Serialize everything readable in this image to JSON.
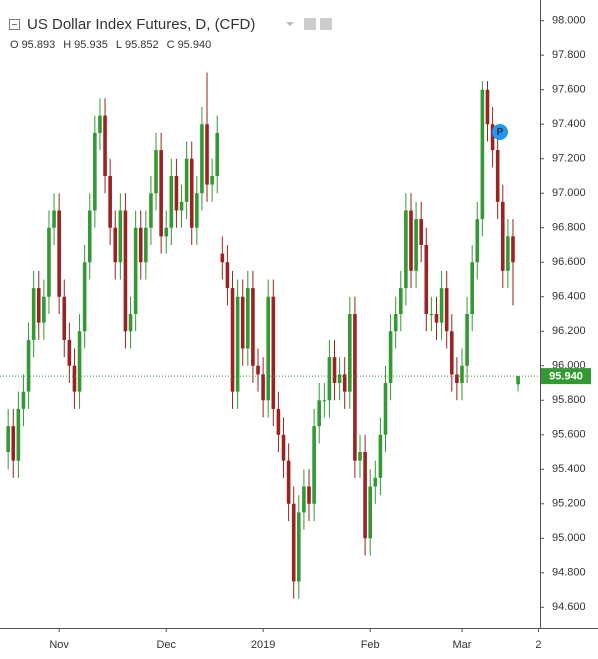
{
  "chart_data": {
    "type": "candlestick",
    "title": "US Dollar Index Futures, D, (CFD)",
    "ohlc_header": [
      {
        "key": "O",
        "value": 95.893
      },
      {
        "key": "H",
        "value": 95.935
      },
      {
        "key": "L",
        "value": 95.852
      },
      {
        "key": "C",
        "value": {
          "value": 95.94,
          "label": "95.940"
        }
      }
    ],
    "up_color": "#339933",
    "down_color": "#992222",
    "open": [
      95.5,
      95.65,
      95.45,
      95.75,
      95.85,
      96.15,
      96.45,
      96.25,
      96.4,
      96.8,
      96.9,
      96.4,
      96.15,
      96.0,
      95.85,
      96.2,
      96.6,
      96.9,
      97.35,
      97.45,
      97.1,
      96.8,
      96.6,
      96.9,
      96.2,
      96.3,
      96.8,
      96.6,
      96.8,
      97.0,
      97.25,
      96.75,
      96.8,
      97.1,
      96.9,
      96.95,
      97.2,
      96.8,
      97.0,
      97.4,
      97.05,
      97.1,
      96.65,
      96.6,
      96.45,
      95.85,
      96.4,
      96.1,
      96.45,
      96.0,
      95.95,
      95.8,
      96.4,
      95.75,
      95.6,
      95.45,
      95.2,
      94.75,
      95.15,
      95.3,
      95.2,
      95.65,
      95.8,
      95.8,
      96.05,
      95.9,
      95.95,
      95.85,
      96.3,
      95.45,
      95.5,
      95.0,
      95.3,
      95.35,
      95.6,
      95.9,
      96.2,
      96.3,
      96.45,
      96.9,
      96.55,
      96.85,
      96.7,
      96.3,
      96.3,
      96.25,
      96.45,
      96.2,
      95.95,
      95.9,
      96.0,
      96.3,
      96.6,
      96.85,
      97.6,
      97.4,
      97.25,
      96.95,
      96.55,
      96.75,
      95.893
    ],
    "high": [
      95.75,
      95.75,
      95.85,
      95.95,
      96.25,
      96.55,
      96.55,
      96.5,
      96.9,
      97.0,
      97.0,
      96.5,
      96.25,
      96.1,
      96.3,
      96.7,
      97.0,
      97.45,
      97.55,
      97.55,
      97.2,
      96.9,
      97.0,
      97.0,
      96.4,
      96.9,
      96.9,
      96.9,
      97.1,
      97.35,
      97.35,
      96.9,
      97.2,
      97.2,
      97.05,
      97.3,
      97.3,
      97.1,
      97.5,
      97.7,
      97.2,
      97.45,
      96.75,
      96.7,
      96.55,
      96.5,
      96.5,
      96.55,
      96.55,
      96.1,
      96.05,
      96.5,
      96.5,
      95.85,
      95.7,
      95.55,
      95.3,
      95.25,
      95.4,
      95.4,
      95.75,
      95.9,
      95.9,
      96.15,
      96.15,
      96.05,
      96.05,
      96.4,
      96.4,
      95.6,
      95.6,
      95.4,
      95.45,
      95.7,
      96.0,
      96.3,
      96.4,
      96.55,
      97.0,
      97.0,
      96.95,
      96.95,
      96.8,
      96.4,
      96.4,
      96.55,
      96.55,
      96.3,
      96.05,
      96.1,
      96.4,
      96.7,
      96.95,
      97.65,
      97.65,
      97.5,
      97.35,
      97.05,
      96.85,
      96.85,
      95.935
    ],
    "low": [
      95.4,
      95.35,
      95.35,
      95.65,
      95.75,
      96.05,
      96.15,
      96.15,
      96.3,
      96.7,
      96.3,
      96.05,
      95.9,
      95.75,
      95.75,
      96.1,
      96.5,
      96.8,
      97.25,
      97.0,
      96.7,
      96.5,
      96.5,
      96.1,
      96.1,
      96.2,
      96.5,
      96.5,
      96.7,
      96.9,
      96.65,
      96.65,
      96.7,
      96.8,
      96.8,
      96.85,
      96.7,
      96.7,
      96.9,
      96.95,
      96.95,
      97.0,
      96.5,
      96.35,
      95.75,
      95.75,
      96.0,
      96.0,
      95.9,
      95.85,
      95.7,
      95.7,
      95.65,
      95.5,
      95.35,
      95.1,
      94.65,
      94.65,
      95.05,
      95.1,
      95.1,
      95.55,
      95.7,
      95.7,
      95.8,
      95.8,
      95.75,
      95.75,
      95.35,
      95.35,
      94.9,
      94.9,
      95.2,
      95.25,
      95.5,
      95.8,
      96.1,
      96.2,
      96.35,
      96.45,
      96.45,
      96.6,
      96.2,
      96.2,
      96.15,
      96.15,
      96.1,
      95.85,
      95.8,
      95.8,
      95.9,
      96.2,
      96.5,
      96.75,
      97.3,
      97.15,
      96.85,
      96.45,
      96.45,
      96.35,
      95.852
    ],
    "close": [
      95.65,
      95.45,
      95.75,
      95.85,
      96.15,
      96.45,
      96.25,
      96.4,
      96.8,
      96.9,
      96.4,
      96.15,
      96.0,
      95.85,
      96.2,
      96.6,
      96.9,
      97.35,
      97.45,
      97.1,
      96.8,
      96.6,
      96.9,
      96.2,
      96.3,
      96.8,
      96.6,
      96.8,
      97.0,
      97.25,
      96.75,
      96.8,
      97.1,
      96.9,
      96.95,
      97.2,
      96.8,
      97.0,
      97.4,
      97.05,
      97.1,
      97.35,
      96.6,
      96.45,
      95.85,
      96.4,
      96.1,
      96.45,
      96.0,
      95.95,
      95.8,
      96.4,
      95.75,
      95.6,
      95.45,
      95.2,
      94.75,
      95.15,
      95.3,
      95.2,
      95.65,
      95.8,
      95.8,
      96.05,
      95.9,
      95.95,
      95.85,
      96.3,
      95.45,
      95.5,
      95.0,
      95.3,
      95.35,
      95.6,
      95.9,
      96.2,
      96.3,
      96.45,
      96.9,
      96.55,
      96.85,
      96.7,
      96.3,
      96.3,
      96.25,
      96.45,
      96.2,
      95.95,
      95.9,
      96.0,
      96.3,
      96.6,
      96.85,
      97.6,
      97.4,
      97.25,
      96.95,
      96.55,
      96.75,
      96.6,
      95.94
    ],
    "xlim": [
      -1.6,
      104.3
    ],
    "xticks": [
      {
        "value": 10,
        "label": "Nov"
      },
      {
        "value": 31,
        "label": "Dec"
      },
      {
        "value": 50,
        "label": "2019"
      },
      {
        "value": 71,
        "label": "Feb"
      },
      {
        "value": 89,
        "label": "Mar"
      },
      {
        "value": 104,
        "label": "2"
      }
    ],
    "ylim": [
      94.48,
      98.12
    ],
    "yticks": [
      {
        "value": 94.6,
        "label": "94.600"
      },
      {
        "value": 94.8,
        "label": "94.800"
      },
      {
        "value": 95.0,
        "label": "95.000"
      },
      {
        "value": 95.2,
        "label": "95.200"
      },
      {
        "value": 95.4,
        "label": "95.400"
      },
      {
        "value": 95.6,
        "label": "95.600"
      },
      {
        "value": 95.8,
        "label": "95.800"
      },
      {
        "value": 96.0,
        "label": "96.000"
      },
      {
        "value": 96.2,
        "label": "96.200"
      },
      {
        "value": 96.4,
        "label": "96.400"
      },
      {
        "value": 96.6,
        "label": "96.600"
      },
      {
        "value": 96.8,
        "label": "96.800"
      },
      {
        "value": 97.0,
        "label": "97.000"
      },
      {
        "value": 97.2,
        "label": "97.200"
      },
      {
        "value": 97.4,
        "label": "97.400"
      },
      {
        "value": 97.6,
        "label": "97.600"
      },
      {
        "value": 97.8,
        "label": "97.800"
      },
      {
        "value": 98.0,
        "label": "98.000"
      }
    ],
    "last_price": {
      "value": 95.94,
      "label": "95.940"
    },
    "marker_label": "P",
    "grid": false
  }
}
